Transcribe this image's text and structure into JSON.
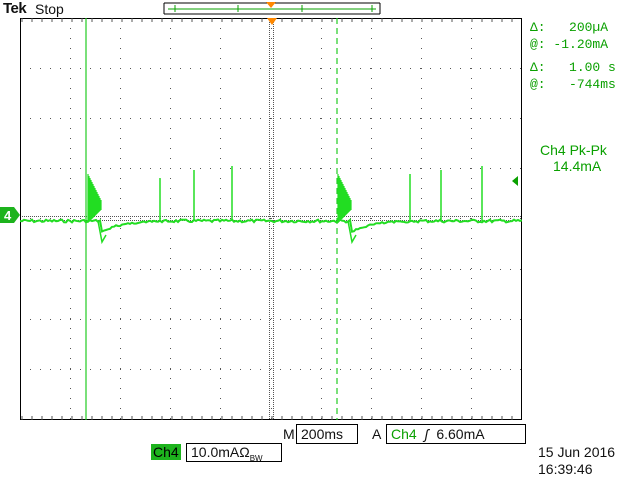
{
  "header": {
    "brand": "Tek",
    "run_state": "Stop"
  },
  "cursors": {
    "current_delta_label": "Δ:",
    "current_delta": "200µA",
    "current_at_label": "@:",
    "current_at": "-1.20mA",
    "time_delta_label": "Δ:",
    "time_delta": "1.00 s",
    "time_at_label": "@:",
    "time_at": "-744ms"
  },
  "measurement": {
    "name": "Ch4 Pk-Pk",
    "value": "14.4mA"
  },
  "channel": {
    "number": "4",
    "badge": "Ch4",
    "scale": "10.0mAΩ",
    "bw_mark": "BW",
    "color": "#22dd22"
  },
  "timebase": {
    "mode_label": "M",
    "value": "200ms"
  },
  "trigger": {
    "mode_label": "A",
    "source": "Ch4",
    "slope_symbol": "ʃ",
    "level": "6.60mA"
  },
  "clock": {
    "date": "15 Jun 2016",
    "time": "16:39:46"
  }
}
